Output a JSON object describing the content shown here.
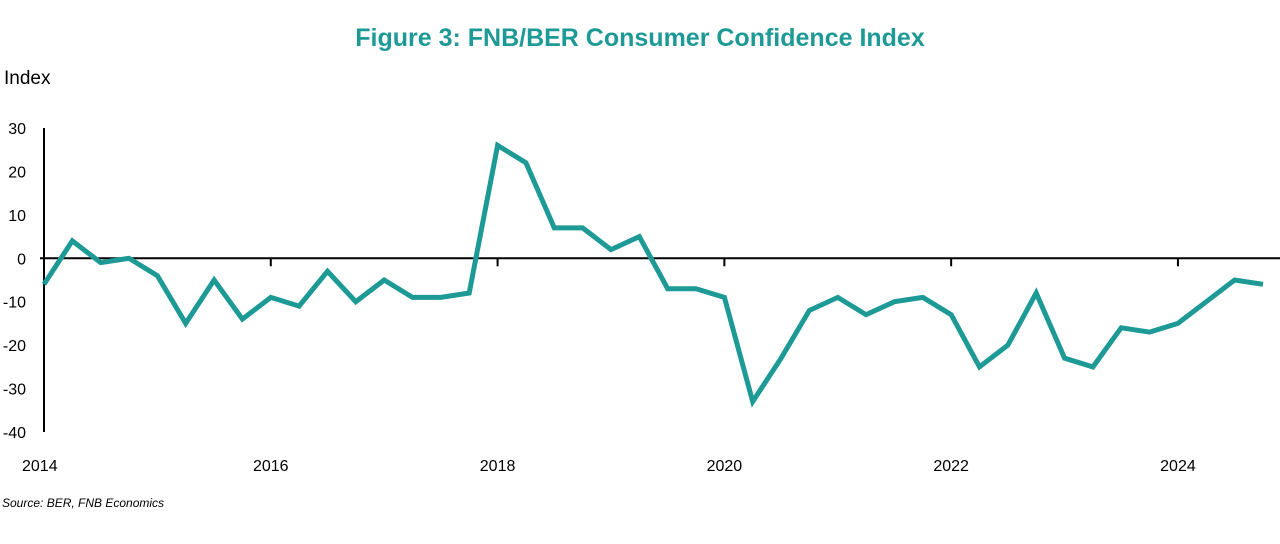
{
  "chart_data": {
    "type": "line",
    "title": "Figure 3: FNB/BER Consumer Confidence Index",
    "ylabel": "Index",
    "xlabel": "",
    "source": "Source: BER, FNB Economics",
    "ylim": [
      -40,
      30
    ],
    "yticks": [
      30,
      20,
      10,
      0,
      -10,
      -20,
      -30,
      -40
    ],
    "xlim": [
      2014,
      2024.9
    ],
    "xticks": [
      2014,
      2016,
      2018,
      2020,
      2022,
      2024
    ],
    "grid": false,
    "series": [
      {
        "color": "#1d9a96",
        "points": [
          [
            2014.0,
            -6
          ],
          [
            2014.25,
            4
          ],
          [
            2014.5,
            -1
          ],
          [
            2014.75,
            0
          ],
          [
            2015.0,
            -4
          ],
          [
            2015.25,
            -15
          ],
          [
            2015.5,
            -5
          ],
          [
            2015.75,
            -14
          ],
          [
            2016.0,
            -9
          ],
          [
            2016.25,
            -11
          ],
          [
            2016.5,
            -3
          ],
          [
            2016.75,
            -10
          ],
          [
            2017.0,
            -5
          ],
          [
            2017.25,
            -9
          ],
          [
            2017.5,
            -9
          ],
          [
            2017.75,
            -8
          ],
          [
            2018.0,
            26
          ],
          [
            2018.25,
            22
          ],
          [
            2018.5,
            7
          ],
          [
            2018.75,
            7
          ],
          [
            2019.0,
            2
          ],
          [
            2019.25,
            5
          ],
          [
            2019.5,
            -7
          ],
          [
            2019.75,
            -7
          ],
          [
            2020.0,
            -9
          ],
          [
            2020.25,
            -33
          ],
          [
            2020.5,
            -23
          ],
          [
            2020.75,
            -12
          ],
          [
            2021.0,
            -9
          ],
          [
            2021.25,
            -13
          ],
          [
            2021.5,
            -10
          ],
          [
            2021.75,
            -9
          ],
          [
            2022.0,
            -13
          ],
          [
            2022.25,
            -25
          ],
          [
            2022.5,
            -20
          ],
          [
            2022.75,
            -8
          ],
          [
            2023.0,
            -23
          ],
          [
            2023.25,
            -25
          ],
          [
            2023.5,
            -16
          ],
          [
            2023.75,
            -17
          ],
          [
            2024.0,
            -15
          ],
          [
            2024.25,
            -10
          ],
          [
            2024.5,
            -5
          ],
          [
            2024.75,
            -6
          ]
        ]
      }
    ]
  },
  "colors": {
    "accent": "#1d9a96",
    "axis": "#000000"
  }
}
